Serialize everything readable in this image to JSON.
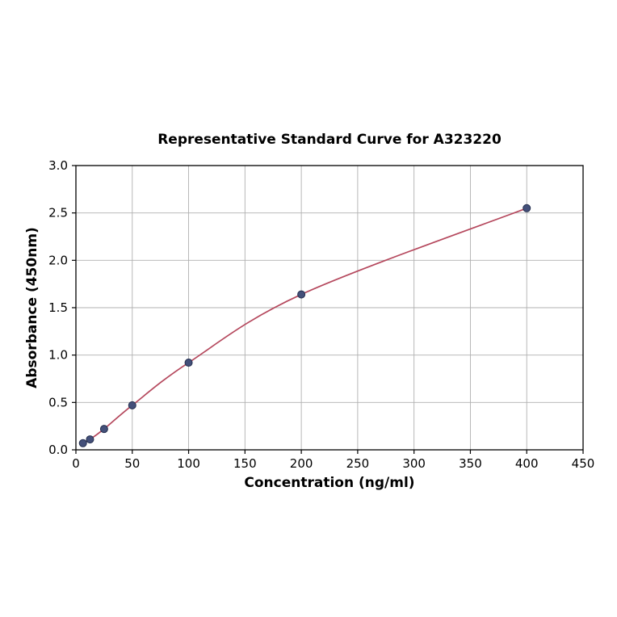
{
  "chart_data": {
    "type": "line",
    "title": "Representative Standard Curve for A323220",
    "xlabel": "Concentration (ng/ml)",
    "ylabel": "Absorbance (450nm)",
    "x": [
      6.25,
      12.5,
      25,
      50,
      100,
      200,
      400
    ],
    "y": [
      0.07,
      0.11,
      0.22,
      0.47,
      0.92,
      1.64,
      2.55
    ],
    "xlim": [
      0,
      450
    ],
    "ylim": [
      0,
      3.0
    ],
    "x_ticks": [
      0,
      50,
      100,
      150,
      200,
      250,
      300,
      350,
      400,
      450
    ],
    "x_tick_labels": [
      "0",
      "50",
      "100",
      "150",
      "200",
      "250",
      "300",
      "350",
      "400",
      "450"
    ],
    "y_ticks": [
      0.0,
      0.5,
      1.0,
      1.5,
      2.0,
      2.5,
      3.0
    ],
    "y_tick_labels": [
      "0.0",
      "0.5",
      "1.0",
      "1.5",
      "2.0",
      "2.5",
      "3.0"
    ],
    "grid": true,
    "legend": "none",
    "colors": {
      "line": "#b5485d",
      "marker_fill": "#44507a",
      "marker_edge": "#232e4e",
      "grid": "#b0b0b0",
      "axis": "#000000",
      "background": "#ffffff"
    }
  }
}
